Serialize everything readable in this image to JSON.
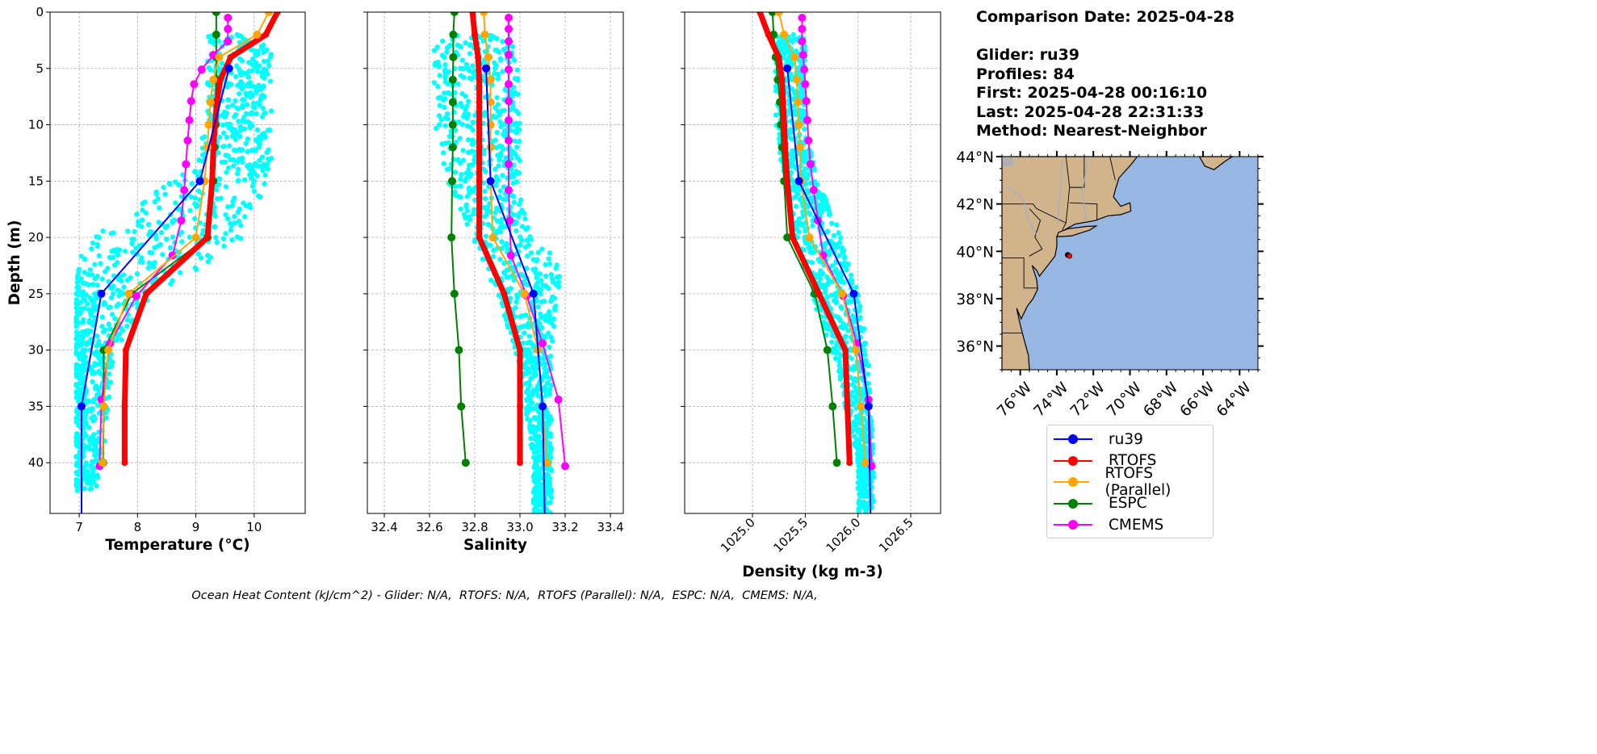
{
  "info": {
    "comparison_date": "Comparison Date: 2025-04-28",
    "glider": "Glider: ru39",
    "profiles": "Profiles: 84",
    "first": "First: 2025-04-28 00:16:10",
    "last": "Last: 2025-04-28 22:31:33",
    "method": "Method: Nearest-Neighbor"
  },
  "footer": "Ocean Heat Content (kJ/cm^2) - Glider: N/A,  RTOFS: N/A,  RTOFS (Parallel): N/A,  ESPC: N/A,  CMEMS: N/A,",
  "chart_data": [
    {
      "type": "line",
      "panel": "temperature",
      "xlabel": "Temperature (°C)",
      "ylabel": "Depth (m)",
      "xlim": [
        6.5,
        10.875
      ],
      "ylim": [
        44.5,
        0
      ],
      "xticks": [
        7,
        8,
        9,
        10
      ],
      "xtick_labels": [
        "7",
        "8",
        "9",
        "10"
      ],
      "yticks": [
        0,
        5,
        10,
        15,
        20,
        25,
        30,
        35,
        40
      ],
      "ytick_labels": [
        "0",
        "5",
        "10",
        "15",
        "20",
        "25",
        "30",
        "35",
        "40"
      ],
      "grid": true,
      "glider_scatter_envelope": {
        "depth": [
          2,
          10,
          14,
          17,
          20,
          22,
          25,
          30,
          40,
          42.5
        ],
        "min": [
          9.2,
          9.2,
          8.9,
          8.0,
          7.2,
          7.0,
          6.95,
          6.95,
          6.95,
          6.95
        ],
        "max": [
          10.3,
          10.3,
          10.3,
          10.1,
          9.8,
          9.3,
          8.3,
          7.6,
          7.4,
          7.3
        ]
      },
      "series": [
        {
          "name": "ru39",
          "depth": [
            5,
            15,
            25,
            35,
            45
          ],
          "values": [
            9.57,
            9.07,
            7.38,
            7.04,
            7.04
          ]
        },
        {
          "name": "RTOFS",
          "depth": [
            0,
            2,
            4,
            6,
            8,
            10,
            12,
            15,
            20,
            25,
            30,
            35,
            40
          ],
          "values": [
            10.4,
            10.2,
            9.6,
            9.42,
            9.36,
            9.33,
            9.3,
            9.28,
            9.2,
            8.15,
            7.8,
            7.78,
            7.78
          ]
        },
        {
          "name": "RTOFS (Parallel)",
          "depth": [
            0,
            2,
            4,
            6,
            8,
            10,
            12,
            15,
            20,
            25,
            30,
            35,
            40
          ],
          "values": [
            10.25,
            10.05,
            9.4,
            9.3,
            9.25,
            9.22,
            9.2,
            9.15,
            9.0,
            7.85,
            7.5,
            7.42,
            7.4
          ]
        },
        {
          "name": "ESPC",
          "depth": [
            0,
            2,
            4,
            6,
            8,
            10,
            12,
            15,
            20,
            25,
            30,
            35,
            40
          ],
          "values": [
            9.35,
            9.35,
            9.35,
            9.35,
            9.34,
            9.34,
            9.32,
            9.3,
            9.2,
            7.9,
            7.42,
            7.42,
            7.41
          ]
        },
        {
          "name": "CMEMS",
          "depth": [
            0.5,
            1.5,
            2.6,
            3.8,
            5.1,
            6.4,
            7.9,
            9.6,
            11.4,
            13.5,
            15.8,
            18.5,
            21.6,
            25.2,
            29.4,
            34.4,
            40.3
          ],
          "values": [
            9.55,
            9.55,
            9.55,
            9.3,
            9.1,
            8.97,
            8.92,
            8.89,
            8.86,
            8.83,
            8.8,
            8.75,
            8.6,
            7.98,
            7.53,
            7.38,
            7.35
          ]
        }
      ]
    },
    {
      "type": "line",
      "panel": "salinity",
      "xlabel": "Salinity",
      "xlim": [
        32.325,
        33.457
      ],
      "ylim": [
        44.5,
        0
      ],
      "xticks": [
        32.4,
        32.6,
        32.8,
        33.0,
        33.2,
        33.4
      ],
      "xtick_labels": [
        "32.4",
        "32.6",
        "32.8",
        "33.0",
        "33.2",
        "33.4"
      ],
      "yticks": [
        0,
        5,
        10,
        15,
        20,
        25,
        30,
        35,
        40
      ],
      "grid": true,
      "glider_scatter_envelope": {
        "depth": [
          2,
          10,
          15,
          20,
          22,
          25,
          30,
          40,
          44.5
        ],
        "min": [
          32.62,
          32.62,
          32.68,
          32.78,
          32.82,
          32.9,
          32.98,
          33.06,
          33.06
        ],
        "max": [
          33.0,
          33.0,
          33.0,
          33.05,
          33.18,
          33.17,
          33.14,
          33.14,
          33.14
        ]
      },
      "series": [
        {
          "name": "ru39",
          "depth": [
            5,
            15,
            25,
            35,
            45
          ],
          "values": [
            32.85,
            32.87,
            33.06,
            33.1,
            33.11
          ]
        },
        {
          "name": "RTOFS",
          "depth": [
            0,
            2,
            4,
            6,
            8,
            10,
            12,
            15,
            20,
            25,
            30,
            35,
            40
          ],
          "values": [
            32.79,
            32.8,
            32.815,
            32.82,
            32.82,
            32.82,
            32.82,
            32.82,
            32.82,
            32.93,
            33.0,
            33.0,
            33.0
          ]
        },
        {
          "name": "RTOFS (Parallel)",
          "depth": [
            0,
            2,
            4,
            6,
            8,
            10,
            12,
            15,
            20,
            25,
            30,
            35,
            40
          ],
          "values": [
            32.84,
            32.845,
            32.86,
            32.87,
            32.87,
            32.87,
            32.87,
            32.87,
            32.88,
            33.02,
            33.08,
            33.1,
            33.12
          ]
        },
        {
          "name": "ESPC",
          "depth": [
            0,
            2,
            4,
            6,
            8,
            10,
            12,
            15,
            20,
            25,
            30,
            35,
            40
          ],
          "values": [
            32.71,
            32.705,
            32.705,
            32.703,
            32.703,
            32.703,
            32.703,
            32.7,
            32.697,
            32.71,
            32.73,
            32.74,
            32.76
          ]
        },
        {
          "name": "CMEMS",
          "depth": [
            0.5,
            1.5,
            2.6,
            3.8,
            5.1,
            6.4,
            7.9,
            9.6,
            11.4,
            13.5,
            15.8,
            18.5,
            21.6,
            25.2,
            29.4,
            34.4,
            40.3
          ],
          "values": [
            32.95,
            32.95,
            32.95,
            32.95,
            32.95,
            32.95,
            32.95,
            32.95,
            32.95,
            32.95,
            32.95,
            32.955,
            32.96,
            33.03,
            33.1,
            33.17,
            33.2
          ]
        }
      ]
    },
    {
      "type": "line",
      "panel": "density",
      "xlabel": "Density (kg m-3)",
      "xlim": [
        1024.357,
        1026.783
      ],
      "ylim": [
        44.5,
        0
      ],
      "xticks": [
        1025.0,
        1025.5,
        1026.0,
        1026.5
      ],
      "xtick_labels": [
        "1025.0",
        "1025.5",
        "1026.0",
        "1026.5"
      ],
      "yticks": [
        0,
        5,
        10,
        15,
        20,
        25,
        30,
        35,
        40
      ],
      "grid": true,
      "glider_scatter_envelope": {
        "depth": [
          2,
          10,
          15,
          20,
          25,
          30,
          40,
          44.5
        ],
        "min": [
          1025.22,
          1025.22,
          1025.3,
          1025.38,
          1025.55,
          1025.75,
          1026.0,
          1026.0
        ],
        "max": [
          1025.5,
          1025.5,
          1025.62,
          1025.85,
          1026.0,
          1026.1,
          1026.15,
          1026.15
        ]
      },
      "series": [
        {
          "name": "ru39",
          "depth": [
            5,
            15,
            25,
            35,
            45
          ],
          "values": [
            1025.33,
            1025.44,
            1025.96,
            1026.1,
            1026.12
          ]
        },
        {
          "name": "RTOFS",
          "depth": [
            0,
            2,
            4,
            6,
            8,
            10,
            12,
            15,
            20,
            25,
            30,
            35,
            40
          ],
          "values": [
            1025.07,
            1025.15,
            1025.25,
            1025.28,
            1025.29,
            1025.3,
            1025.31,
            1025.33,
            1025.38,
            1025.63,
            1025.88,
            1025.9,
            1025.92
          ]
        },
        {
          "name": "RTOFS (Parallel)",
          "depth": [
            0,
            2,
            4,
            6,
            8,
            10,
            12,
            15,
            20,
            25,
            30,
            35,
            40
          ],
          "values": [
            1025.25,
            1025.3,
            1025.4,
            1025.42,
            1025.43,
            1025.44,
            1025.45,
            1025.46,
            1025.54,
            1025.85,
            1025.98,
            1026.03,
            1026.07
          ]
        },
        {
          "name": "ESPC",
          "depth": [
            0,
            2,
            4,
            6,
            8,
            10,
            12,
            15,
            20,
            25,
            30,
            35,
            40
          ],
          "values": [
            1025.19,
            1025.2,
            1025.22,
            1025.24,
            1025.26,
            1025.27,
            1025.28,
            1025.3,
            1025.33,
            1025.59,
            1025.71,
            1025.76,
            1025.8
          ]
        },
        {
          "name": "CMEMS",
          "depth": [
            0.5,
            1.5,
            2.6,
            3.8,
            5.1,
            6.4,
            7.9,
            9.6,
            11.4,
            13.5,
            15.8,
            18.5,
            21.6,
            25.2,
            29.4,
            34.4,
            40.3
          ],
          "values": [
            1025.47,
            1025.47,
            1025.47,
            1025.48,
            1025.49,
            1025.5,
            1025.51,
            1025.52,
            1025.53,
            1025.55,
            1025.58,
            1025.62,
            1025.67,
            1025.86,
            1025.99,
            1026.1,
            1026.13
          ]
        }
      ]
    }
  ],
  "legend": [
    {
      "label": "ru39",
      "color": "#0000ff"
    },
    {
      "label": "RTOFS",
      "color": "#ff0000"
    },
    {
      "label": "RTOFS (Parallel)",
      "color": "#ffa500"
    },
    {
      "label": "ESPC",
      "color": "#008000"
    },
    {
      "label": "CMEMS",
      "color": "#ff00ff"
    }
  ],
  "scatter_color": "#00ffff",
  "map": {
    "lon_range": [
      -77,
      -63
    ],
    "lat_range": [
      35,
      44
    ],
    "lat_ticks": [
      44,
      42,
      40,
      38,
      36
    ],
    "lat_labels": [
      "44°N",
      "42°N",
      "40°N",
      "38°N",
      "36°N"
    ],
    "lon_ticks": [
      -76,
      -74,
      -72,
      -70,
      -68,
      -66,
      -64
    ],
    "lon_labels": [
      "76°W",
      "74°W",
      "72°W",
      "70°W",
      "68°W",
      "66°W",
      "64°W"
    ],
    "glider_position": {
      "lon": -73.3,
      "lat": 39.8
    },
    "land_color": "#d2b48c",
    "ocean_color": "#97b6e1"
  }
}
